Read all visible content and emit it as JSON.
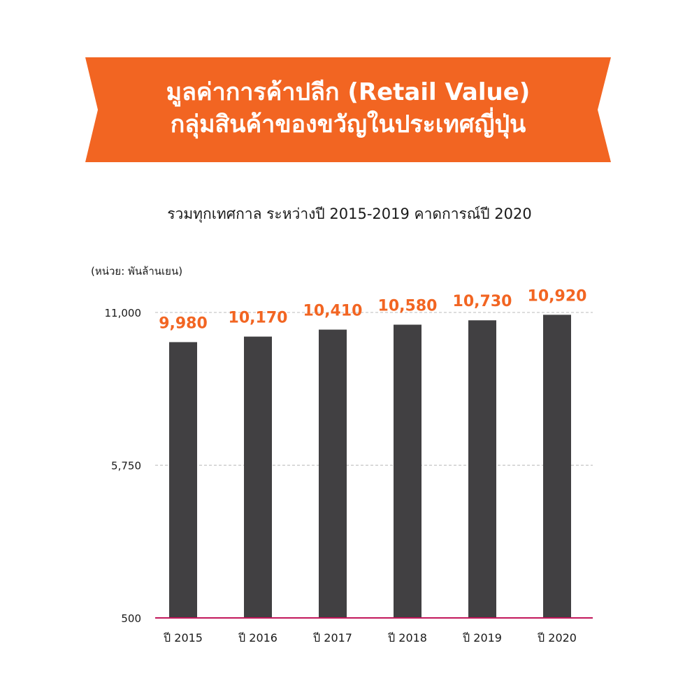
{
  "banner": {
    "title_line_1": "มูลค่าการค้าปลีก (Retail Value)",
    "title_line_2": "กลุ่มสินค้าของขวัญในประเทศญี่ปุ่น",
    "color": "#F26522"
  },
  "subtitle": "รวมทุกเทศกาล ระหว่างปี 2015-2019 คาดการณ์ปี 2020",
  "unit_label": "(หน่วย: พันล้านเยน)",
  "colors": {
    "bar": "#414042",
    "value_label": "#F26522",
    "baseline": "#C2185B",
    "gridline": "#BBBBBB"
  },
  "chart_data": {
    "type": "bar",
    "categories": [
      "ปี 2015",
      "ปี 2016",
      "ปี 2017",
      "ปี 2018",
      "ปี 2019",
      "ปี 2020"
    ],
    "values": [
      9980,
      10170,
      10410,
      10580,
      10730,
      10920
    ],
    "value_labels": [
      "9,980",
      "10,170",
      "10,410",
      "10,580",
      "10,730",
      "10,920"
    ],
    "yticks": [
      500,
      5750,
      11000
    ],
    "ytick_labels": [
      "500",
      "5,750",
      "11,000"
    ],
    "ylim": [
      500,
      11000
    ],
    "grid": true
  }
}
